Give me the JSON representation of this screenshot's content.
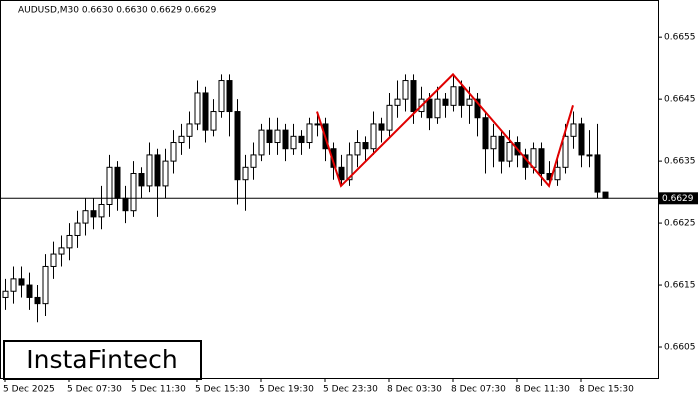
{
  "chart_data": {
    "type": "candlestick",
    "title": "AUDUSD,M30  0.6630 0.6630 0.6629 0.6629",
    "logo": "InstaFintech",
    "categories": [
      "5 Dec 2025",
      null,
      null,
      null,
      null,
      null,
      null,
      null,
      "5 Dec 07:30",
      null,
      null,
      null,
      null,
      null,
      null,
      null,
      "5 Dec 11:30",
      null,
      null,
      null,
      null,
      null,
      null,
      null,
      "5 Dec 15:30",
      null,
      null,
      null,
      null,
      null,
      null,
      null,
      "5 Dec 19:30",
      null,
      null,
      null,
      null,
      null,
      null,
      null,
      "5 Dec 23:30",
      null,
      null,
      null,
      null,
      null,
      null,
      null,
      "8 Dec 03:30",
      null,
      null,
      null,
      null,
      null,
      null,
      null,
      "8 Dec 07:30",
      null,
      null,
      null,
      null,
      null,
      null,
      null,
      "8 Dec 11:30",
      null,
      null,
      null,
      null,
      null,
      null,
      null,
      "8 Dec 15:30",
      null,
      null,
      null
    ],
    "open": [
      0.6613,
      0.6614,
      0.6616,
      0.6615,
      0.6613,
      0.6612,
      0.6618,
      0.662,
      0.6621,
      0.6623,
      0.6625,
      0.6627,
      0.6626,
      0.6628,
      0.6634,
      0.6629,
      0.6627,
      0.6633,
      0.6631,
      0.6636,
      0.6631,
      0.6635,
      0.6638,
      0.6639,
      0.6641,
      0.6646,
      0.664,
      0.6643,
      0.6648,
      0.6643,
      0.6632,
      0.6634,
      0.6636,
      0.664,
      0.6638,
      0.664,
      0.6637,
      0.6639,
      0.6638,
      0.6641,
      0.6641,
      0.6637,
      0.6634,
      0.6632,
      0.6636,
      0.6638,
      0.6637,
      0.6641,
      0.664,
      0.6644,
      0.6645,
      0.6648,
      0.6643,
      0.6645,
      0.6642,
      0.6645,
      0.6644,
      0.6647,
      0.6644,
      0.6645,
      0.6642,
      0.6637,
      0.6639,
      0.6635,
      0.6638,
      0.6636,
      0.6634,
      0.6637,
      0.6633,
      0.6632,
      0.6634,
      0.6639,
      0.6641,
      0.6636,
      0.6636,
      0.663
    ],
    "high": [
      0.6616,
      0.6618,
      0.6618,
      0.6617,
      0.6615,
      0.662,
      0.6622,
      0.6623,
      0.6625,
      0.6627,
      0.6629,
      0.6629,
      0.6631,
      0.6636,
      0.6635,
      0.6631,
      0.6635,
      0.6634,
      0.6638,
      0.6637,
      0.6637,
      0.664,
      0.6641,
      0.6643,
      0.6648,
      0.6647,
      0.6645,
      0.6649,
      0.6649,
      0.6645,
      0.6636,
      0.6638,
      0.6641,
      0.6642,
      0.6642,
      0.6641,
      0.6641,
      0.664,
      0.6642,
      0.6643,
      0.6642,
      0.6638,
      0.6636,
      0.6638,
      0.664,
      0.6639,
      0.6643,
      0.6642,
      0.6646,
      0.6648,
      0.6649,
      0.6649,
      0.6647,
      0.6646,
      0.6647,
      0.6646,
      0.6649,
      0.6648,
      0.6647,
      0.6646,
      0.6643,
      0.6641,
      0.664,
      0.664,
      0.6639,
      0.6637,
      0.6638,
      0.6638,
      0.6635,
      0.6636,
      0.6641,
      0.6643,
      0.6642,
      0.664,
      0.6641,
      0.663
    ],
    "low": [
      0.6611,
      0.6612,
      0.6613,
      0.6611,
      0.6609,
      0.661,
      0.6616,
      0.6618,
      0.6619,
      0.6621,
      0.6623,
      0.6624,
      0.6624,
      0.6626,
      0.6627,
      0.6625,
      0.6626,
      0.6629,
      0.663,
      0.6626,
      0.6629,
      0.6633,
      0.6636,
      0.6637,
      0.664,
      0.6638,
      0.6639,
      0.6642,
      0.6639,
      0.6628,
      0.6627,
      0.6632,
      0.6635,
      0.6636,
      0.6636,
      0.6635,
      0.6636,
      0.6636,
      0.6637,
      0.6639,
      0.6635,
      0.6632,
      0.6631,
      0.6631,
      0.6634,
      0.6635,
      0.6636,
      0.6638,
      0.6639,
      0.6642,
      0.6643,
      0.6641,
      0.6642,
      0.664,
      0.6641,
      0.6642,
      0.6643,
      0.6642,
      0.6641,
      0.6639,
      0.6633,
      0.6634,
      0.6633,
      0.6634,
      0.6634,
      0.6632,
      0.6633,
      0.6631,
      0.6631,
      0.6631,
      0.6633,
      0.6637,
      0.6634,
      0.6634,
      0.6629,
      0.6629
    ],
    "close": [
      0.6614,
      0.6616,
      0.6615,
      0.6613,
      0.6612,
      0.6618,
      0.662,
      0.6621,
      0.6623,
      0.6625,
      0.6627,
      0.6626,
      0.6628,
      0.6634,
      0.6629,
      0.6627,
      0.6633,
      0.6631,
      0.6636,
      0.6631,
      0.6635,
      0.6638,
      0.6639,
      0.6641,
      0.6646,
      0.664,
      0.6643,
      0.6648,
      0.6643,
      0.6632,
      0.6634,
      0.6636,
      0.664,
      0.6638,
      0.664,
      0.6637,
      0.6639,
      0.6638,
      0.6641,
      0.6641,
      0.6637,
      0.6634,
      0.6632,
      0.6636,
      0.6638,
      0.6637,
      0.6641,
      0.664,
      0.6644,
      0.6645,
      0.6648,
      0.6643,
      0.6645,
      0.6642,
      0.6645,
      0.6644,
      0.6647,
      0.6644,
      0.6645,
      0.6642,
      0.6637,
      0.6639,
      0.6635,
      0.6638,
      0.6636,
      0.6634,
      0.6637,
      0.6633,
      0.6632,
      0.6634,
      0.6639,
      0.6641,
      0.6636,
      0.6636,
      0.663,
      0.6629
    ],
    "ylim": [
      0.66,
      0.6661
    ],
    "yticks": [
      0.6655,
      0.6645,
      0.6635,
      0.6625,
      0.6615,
      0.6605
    ],
    "last_price": 0.6629,
    "pattern": {
      "color": "#e00000",
      "x": [
        39,
        42,
        56,
        68,
        71
      ],
      "y": [
        0.6643,
        0.6631,
        0.6649,
        0.6631,
        0.6644
      ]
    }
  }
}
